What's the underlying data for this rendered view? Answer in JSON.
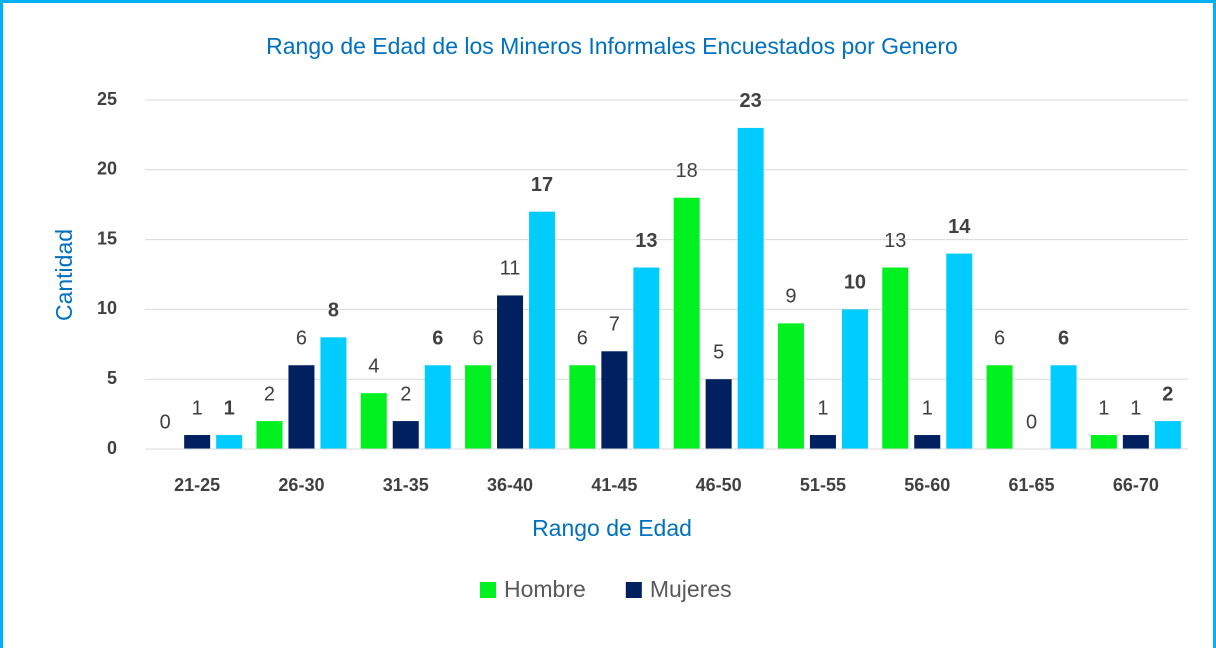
{
  "chart_data": {
    "type": "bar",
    "title": "Rango de Edad de los Mineros Informales Encuestados por Genero",
    "xlabel": "Rango de Edad",
    "ylabel": "Cantidad",
    "categories": [
      "21-25",
      "26-30",
      "31-35",
      "36-40",
      "41-45",
      "46-50",
      "51-55",
      "56-60",
      "61-65",
      "66-70"
    ],
    "series": [
      {
        "name": "Hombre",
        "color": "#00f020",
        "values": [
          0,
          2,
          4,
          6,
          6,
          18,
          9,
          13,
          6,
          1
        ]
      },
      {
        "name": "Mujeres",
        "color": "#002060",
        "values": [
          1,
          6,
          2,
          11,
          7,
          5,
          1,
          1,
          0,
          1
        ]
      },
      {
        "color": "#00ccff",
        "label_bold": true,
        "values": [
          1,
          8,
          6,
          17,
          13,
          23,
          10,
          14,
          6,
          2
        ]
      }
    ],
    "ylim": [
      0,
      25
    ],
    "yticks": [
      0,
      5,
      10,
      15,
      20,
      25
    ],
    "grid": true,
    "legend": "bottom"
  }
}
